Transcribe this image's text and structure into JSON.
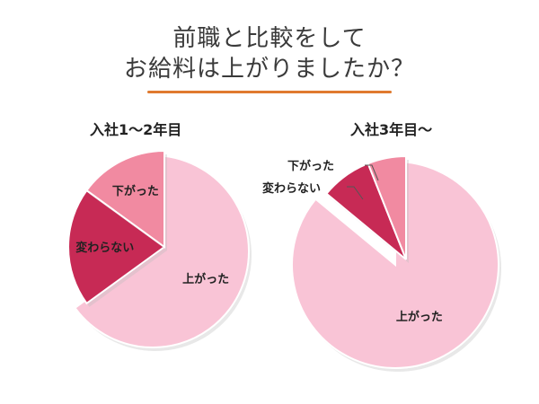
{
  "title": {
    "line1": "前職と比較をして",
    "line2": "お給料は上がりましたか？"
  },
  "colors": {
    "up": "#f9c4d6",
    "same": "#c72a55",
    "down": "#f18aa1",
    "underline": "#e07a2f",
    "shadow": "#bdbdbd"
  },
  "chart_data": [
    {
      "type": "pie",
      "title": "入社1〜2年目",
      "categories": [
        "上がった",
        "変わらない",
        "下がった"
      ],
      "values": [
        65,
        20,
        15
      ],
      "value_unit": "percent (approx.)",
      "start": "12 o'clock, clockwise",
      "exploded": [
        "変わらない",
        "下がった"
      ]
    },
    {
      "type": "pie",
      "title": "入社3年目〜",
      "categories": [
        "上がった",
        "変わらない",
        "下がった"
      ],
      "values": [
        86,
        8,
        6
      ],
      "value_unit": "percent (approx.)",
      "start": "12 o'clock, clockwise",
      "exploded": [
        "変わらない",
        "下がった"
      ]
    }
  ]
}
